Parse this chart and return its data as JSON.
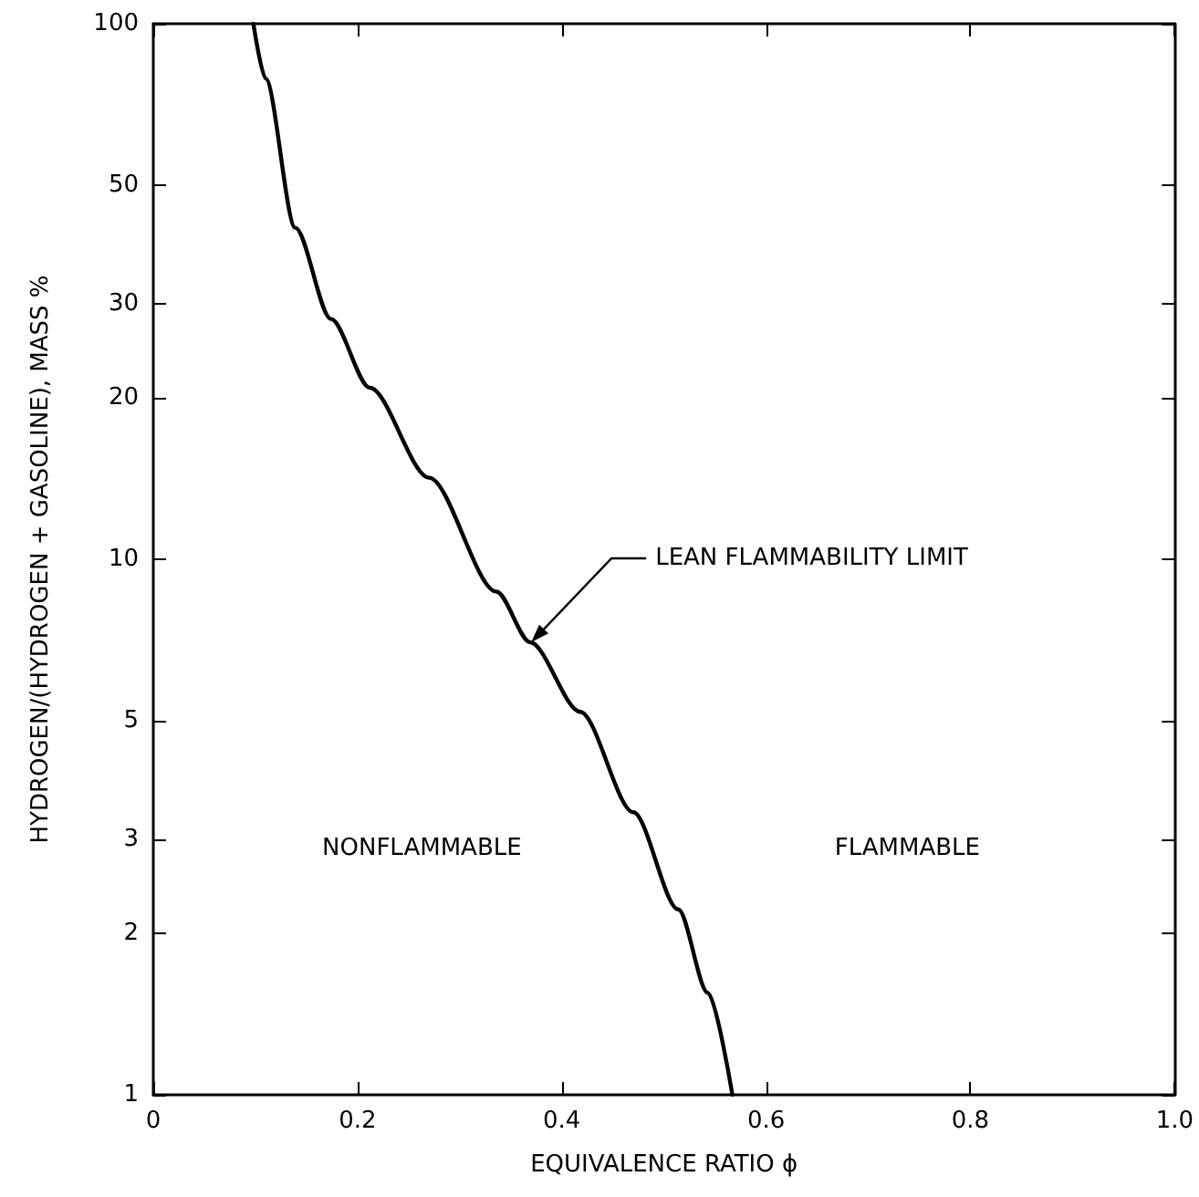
{
  "chart_data": {
    "type": "line",
    "xlabel": "EQUIVALENCE RATIO ϕ",
    "ylabel": "HYDROGEN/(HYDROGEN + GASOLINE), MASS %",
    "x": [
      0.098,
      0.11,
      0.139,
      0.174,
      0.212,
      0.27,
      0.336,
      0.369,
      0.418,
      0.47,
      0.514,
      0.543,
      0.567
    ],
    "series": [
      {
        "color": "#000000",
        "values": [
          100,
          79,
          41.6,
          28.1,
          20.9,
          14.2,
          8.7,
          7.0,
          5.19,
          3.37,
          2.22,
          1.55,
          1.0
        ]
      }
    ],
    "xlim": [
      0,
      1
    ],
    "xticks": [
      0,
      0.2,
      0.4,
      0.6,
      0.8,
      {
        "value": 1,
        "label": "1.0"
      }
    ],
    "ylim": [
      1,
      100
    ],
    "yticks": [
      1,
      2,
      3,
      5,
      10,
      20,
      30,
      50,
      100
    ],
    "log": "y",
    "grid": false,
    "marker": "none",
    "line_style": "solid",
    "annotations": [
      {
        "text": "LEAN FLAMMABILITY LIMIT",
        "x": 0.37,
        "y": 7.0
      },
      "NONFLAMMABLE",
      "FLAMMABLE"
    ]
  }
}
